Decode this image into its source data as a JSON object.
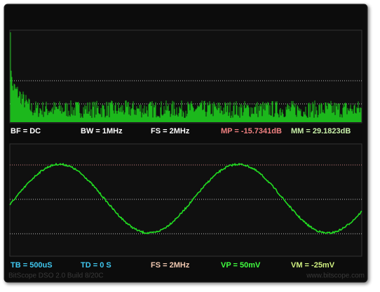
{
  "spectrum": {
    "status": [
      "BF = DC",
      "BW = 1MHz",
      "FS = 2MHz",
      "MP = -15.7341dB",
      "MM = 29.1823dB"
    ]
  },
  "waveform": {
    "status": [
      "TB = 500uS",
      "TD = 0 S",
      "FS = 2MHz",
      "VP = 50mV",
      "VM = -25mV"
    ]
  },
  "footer": {
    "left": "BitScope DSO 2.0 Build 8/20C",
    "right": "www.bitscope.com"
  }
}
